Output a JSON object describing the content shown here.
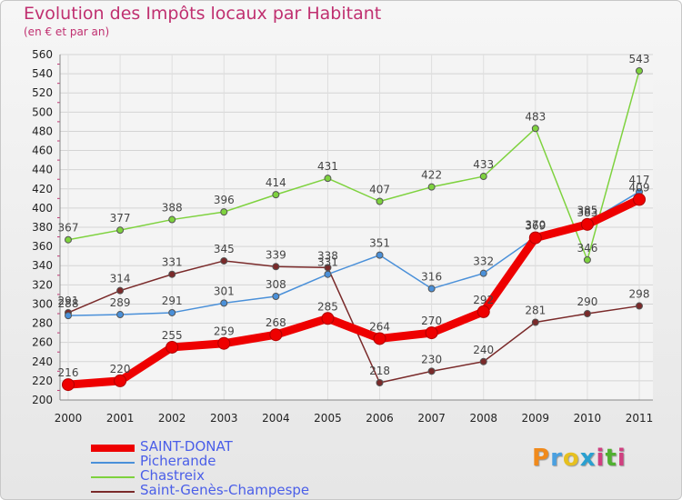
{
  "header": {
    "title": "Evolution des Impôts locaux par Habitant",
    "subtitle": "(en € et par an)"
  },
  "logo": {
    "text": "Proxiti"
  },
  "chart_data": {
    "type": "line",
    "title": "Evolution des Impôts locaux par Habitant",
    "subtitle": "(en € et par an)",
    "xlabel": "",
    "ylabel": "",
    "x": [
      "2000",
      "2001",
      "2002",
      "2003",
      "2004",
      "2005",
      "2006",
      "2007",
      "2008",
      "2009",
      "2010",
      "2011"
    ],
    "ylim": [
      200,
      560
    ],
    "yticks": [
      200,
      220,
      240,
      260,
      280,
      300,
      320,
      340,
      360,
      380,
      400,
      420,
      440,
      460,
      480,
      500,
      520,
      540,
      560
    ],
    "grid": true,
    "legend": "bottom-left",
    "series": [
      {
        "name": "SAINT-DONAT",
        "color": "#ee0000",
        "values": [
          216,
          220,
          255,
          259,
          268,
          285,
          264,
          270,
          292,
          369,
          383,
          409
        ]
      },
      {
        "name": "Picherande",
        "color": "#4a90d9",
        "values": [
          288,
          289,
          291,
          301,
          308,
          331,
          351,
          316,
          332,
          370,
          385,
          417
        ]
      },
      {
        "name": "Chastreix",
        "color": "#7ed23e",
        "values": [
          367,
          377,
          388,
          396,
          414,
          431,
          407,
          422,
          433,
          483,
          346,
          543
        ]
      },
      {
        "name": "Saint-Genès-Champespe",
        "color": "#7a2a2a",
        "values": [
          291,
          314,
          331,
          345,
          339,
          338,
          218,
          230,
          240,
          281,
          290,
          298
        ]
      }
    ]
  }
}
